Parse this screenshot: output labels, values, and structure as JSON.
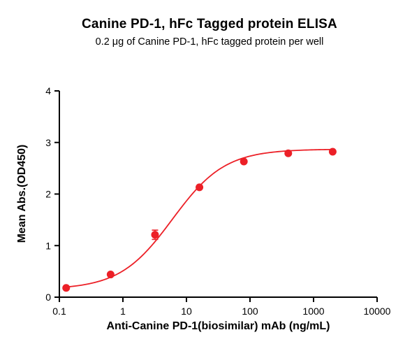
{
  "chart_data": {
    "type": "scatter",
    "title": "Canine PD-1, hFc Tagged protein ELISA",
    "subtitle": "0.2 μg of Canine PD-1, hFc tagged protein per well",
    "xlabel": "Anti-Canine PD-1(biosimilar) mAb (ng/mL)",
    "ylabel": "Mean Abs.(OD450)",
    "x_scale": "log10",
    "xlim": [
      0.1,
      10000
    ],
    "ylim": [
      0,
      4
    ],
    "x_ticks": [
      0.1,
      1,
      10,
      100,
      1000,
      10000
    ],
    "x_tick_labels": [
      "0.1",
      "1",
      "10",
      "100",
      "1000",
      "10000"
    ],
    "y_ticks": [
      0,
      1,
      2,
      3,
      4
    ],
    "y_tick_labels": [
      "0",
      "1",
      "2",
      "3",
      "4"
    ],
    "grid": false,
    "legend": false,
    "axis_color": "#000000",
    "background": "#FFFFFF",
    "series": [
      {
        "name": "Canine PD-1, hFc tagged protein",
        "color": "#EC2027",
        "marker": "circle",
        "points": [
          {
            "x": 0.128,
            "y": 0.18,
            "err": 0.02
          },
          {
            "x": 0.64,
            "y": 0.44,
            "err": 0.02
          },
          {
            "x": 3.2,
            "y": 1.21,
            "err": 0.09
          },
          {
            "x": 16,
            "y": 2.13,
            "err": 0.03
          },
          {
            "x": 80,
            "y": 2.63,
            "err": 0.03
          },
          {
            "x": 400,
            "y": 2.79,
            "err": 0.02
          },
          {
            "x": 2000,
            "y": 2.82,
            "err": 0.02
          }
        ],
        "fit": {
          "model": "4PL",
          "bottom": 0.15,
          "top": 2.87,
          "ec50": 6.0,
          "hill": 1.05
        }
      }
    ]
  }
}
